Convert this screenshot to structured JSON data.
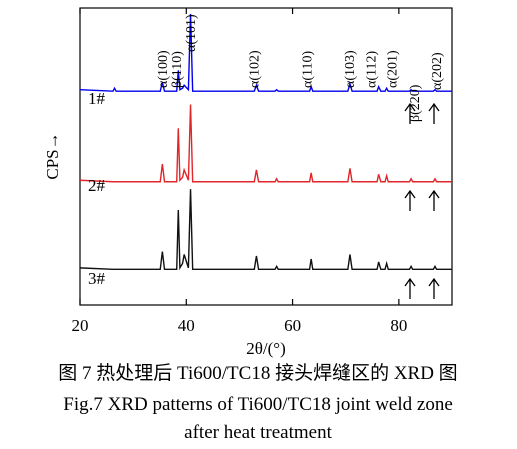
{
  "chart_data": {
    "type": "line",
    "x_label": "2θ/(°)",
    "y_label": "CPS→",
    "xlim": [
      20,
      90
    ],
    "ylim": [
      0,
      100
    ],
    "xticks": [
      20,
      40,
      60,
      80
    ],
    "x": [
      20,
      26.2,
      26.5,
      26.8,
      35.1,
      35.5,
      35.9,
      38.2,
      38.5,
      38.8,
      39.3,
      39.6,
      40.4,
      40.8,
      41.2,
      52.8,
      53.2,
      53.6,
      56.7,
      57.0,
      57.3,
      63.2,
      63.5,
      63.8,
      70.4,
      70.8,
      71.2,
      75.9,
      76.2,
      76.6,
      77.4,
      77.7,
      78.0,
      82.0,
      82.3,
      82.6,
      86.5,
      86.8,
      87.1,
      90
    ],
    "series": [
      {
        "name": "1#",
        "color": "#0000ee",
        "values": [
          72.5,
          72,
          73,
          72,
          72,
          75,
          72,
          72,
          79,
          72.5,
          73,
          74,
          72.5,
          98,
          72,
          72,
          74,
          72,
          72,
          72.5,
          72,
          72,
          73.5,
          72,
          72,
          74.5,
          72,
          72,
          73.5,
          72,
          72,
          73,
          72,
          72,
          72.5,
          72,
          72,
          72.5,
          72,
          72
        ]
      },
      {
        "name": "2#",
        "color": "#e0262a",
        "values": [
          42,
          41.5,
          41.5,
          41.5,
          41.5,
          47.5,
          41.5,
          41.5,
          59.5,
          42,
          43,
          45.5,
          42,
          67.5,
          41.5,
          41.5,
          45.5,
          41.5,
          41.5,
          42.5,
          41.5,
          41.5,
          44.5,
          41.5,
          41.5,
          46,
          41.5,
          41.5,
          44,
          41.5,
          41.5,
          43.5,
          41.5,
          41.5,
          42.5,
          41.5,
          41.5,
          42.5,
          41.5,
          41.5
        ]
      },
      {
        "name": "3#",
        "color": "#111111",
        "values": [
          12.5,
          12,
          12,
          12,
          12,
          18,
          12,
          12,
          32,
          12.5,
          14,
          17,
          12.5,
          39,
          12,
          12,
          16.5,
          12,
          12,
          13,
          12,
          12,
          15.5,
          12,
          12,
          17,
          12,
          12,
          14.5,
          12,
          12,
          14,
          12,
          12,
          13,
          12,
          12,
          13,
          12,
          12
        ]
      }
    ],
    "annotations": [
      {
        "text": "α(100)",
        "x": 36.4
      },
      {
        "text": "β(110)",
        "x": 39.0
      },
      {
        "text": "α(101)",
        "x": 41.6
      },
      {
        "text": "α(102)",
        "x": 53.6
      },
      {
        "text": "α(110)",
        "x": 63.6
      },
      {
        "text": "α(103)",
        "x": 71.6
      },
      {
        "text": "α(112)",
        "x": 75.6
      },
      {
        "text": "α(201)",
        "x": 79.6
      },
      {
        "text": "β(220)",
        "x": 83.8
      },
      {
        "text": "α(202)",
        "x": 87.9
      }
    ]
  },
  "caption": {
    "zh": "图 7  热处理后 Ti600/TC18 接头焊缝区的 XRD 图",
    "en_line1": "Fig.7  XRD patterns of Ti600/TC18 joint weld zone",
    "en_line2": "after heat treatment"
  }
}
